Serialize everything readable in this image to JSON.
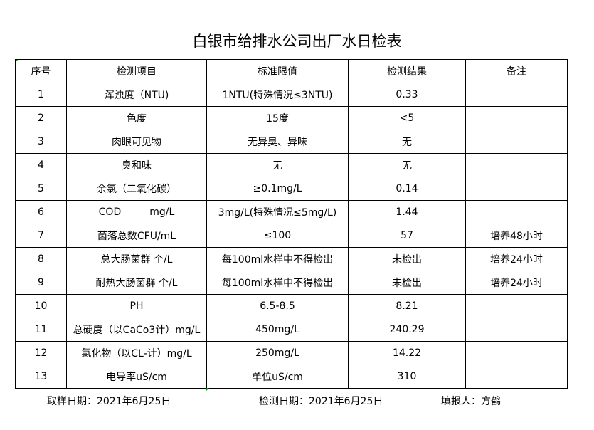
{
  "title": "白银市给排水公司出厂水日检表",
  "headers": [
    "序号",
    "检测项目",
    "标准限值",
    "检测结果",
    "备注"
  ],
  "rows": [
    [
      "1",
      "浑浊度（NTU)",
      "1NTU(特殊情况≤3NTU)",
      "0.33",
      ""
    ],
    [
      "2",
      "色度",
      "15度",
      "<5",
      ""
    ],
    [
      "3",
      "肉眼可见物",
      "无异臭、异味",
      "无",
      ""
    ],
    [
      "4",
      "臭和味",
      "无",
      "无",
      ""
    ],
    [
      "5",
      "余氯（二氧化碳）",
      "≥0.1mg/L",
      "0.14",
      ""
    ],
    [
      "6",
      "COD         mg/L",
      "3mg/L(特殊情况≤5mg/L)",
      "1.44",
      ""
    ],
    [
      "7",
      "菌落总数CFU/mL",
      "≤100",
      "57",
      "培养48小时"
    ],
    [
      "8",
      "总大肠菌群 个/L",
      "每100ml水样中不得检出",
      "未检出",
      "培养24小时"
    ],
    [
      "9",
      "耐热大肠菌群 个/L",
      "每100ml水样中不得检出",
      "未检出",
      "培养24小时"
    ],
    [
      "10",
      "PH",
      "6.5-8.5",
      "8.21",
      ""
    ],
    [
      "11",
      "总硬度（以CaCo3计）mg/L",
      "450mg/L",
      "240.29",
      ""
    ],
    [
      "12",
      "氯化物（以CL-计）mg/L",
      "250mg/L",
      "14.22",
      ""
    ],
    [
      "13",
      "电导率uS/cm",
      "单位uS/cm",
      "310",
      ""
    ]
  ],
  "footer": {
    "sample_date": "取样日期：2021年6月25日",
    "test_date": "检测日期：2021年6月25日",
    "reporter": "填报人：方鹤"
  }
}
